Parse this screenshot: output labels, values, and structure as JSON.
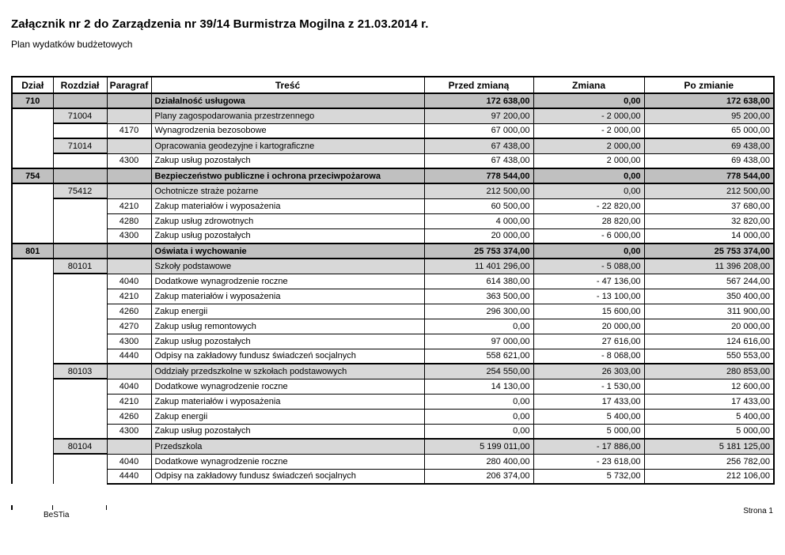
{
  "document": {
    "title": "Załącznik nr 2 do Zarządzenia nr 39/14 Burmistrza Mogilna z 21.03.2014 r.",
    "subtitle": "Plan wydatków budżetowych",
    "footer_left": "BeSTia",
    "footer_right": "Strona 1"
  },
  "colors": {
    "dzial_row_bg": "#c0c0c0",
    "rozdzial_row_bg": "#d8d8d8",
    "paragraf_row_bg": "#ffffff",
    "border": "#000000"
  },
  "table": {
    "columns": [
      "Dział",
      "Rozdział",
      "Paragraf",
      "Treść",
      "Przed zmianą",
      "Zmiana",
      "Po zmianie"
    ],
    "rows": [
      {
        "type": "dzial",
        "dzial": "710",
        "tresc": "Działalność usługowa",
        "przed": "172 638,00",
        "zmiana": "0,00",
        "po": "172 638,00"
      },
      {
        "type": "rozdzial",
        "rozdzial": "71004",
        "tresc": "Plany zagospodarowania przestrzennego",
        "przed": "97 200,00",
        "zmiana": "- 2 000,00",
        "po": "95 200,00"
      },
      {
        "type": "paragraf",
        "paragraf": "4170",
        "tresc": "Wynagrodzenia bezosobowe",
        "przed": "67 000,00",
        "zmiana": "- 2 000,00",
        "po": "65 000,00"
      },
      {
        "type": "rozdzial",
        "rozdzial": "71014",
        "tresc": "Opracowania geodezyjne i kartograficzne",
        "przed": "67 438,00",
        "zmiana": "2 000,00",
        "po": "69 438,00"
      },
      {
        "type": "paragraf",
        "paragraf": "4300",
        "tresc": "Zakup usług pozostałych",
        "przed": "67 438,00",
        "zmiana": "2 000,00",
        "po": "69 438,00"
      },
      {
        "type": "dzial",
        "dzial": "754",
        "tresc": "Bezpieczeństwo publiczne i ochrona przeciwpożarowa",
        "przed": "778 544,00",
        "zmiana": "0,00",
        "po": "778 544,00"
      },
      {
        "type": "rozdzial",
        "rozdzial": "75412",
        "tresc": "Ochotnicze straże pożarne",
        "przed": "212 500,00",
        "zmiana": "0,00",
        "po": "212 500,00"
      },
      {
        "type": "paragraf",
        "paragraf": "4210",
        "tresc": "Zakup materiałów i wyposażenia",
        "przed": "60 500,00",
        "zmiana": "- 22 820,00",
        "po": "37 680,00"
      },
      {
        "type": "paragraf",
        "paragraf": "4280",
        "tresc": "Zakup usług zdrowotnych",
        "przed": "4 000,00",
        "zmiana": "28 820,00",
        "po": "32 820,00"
      },
      {
        "type": "paragraf",
        "paragraf": "4300",
        "tresc": "Zakup usług pozostałych",
        "przed": "20 000,00",
        "zmiana": "- 6 000,00",
        "po": "14 000,00"
      },
      {
        "type": "dzial",
        "dzial": "801",
        "tresc": "Oświata i wychowanie",
        "przed": "25 753 374,00",
        "zmiana": "0,00",
        "po": "25 753 374,00"
      },
      {
        "type": "rozdzial",
        "rozdzial": "80101",
        "tresc": "Szkoły podstawowe",
        "przed": "11 401 296,00",
        "zmiana": "- 5 088,00",
        "po": "11 396 208,00"
      },
      {
        "type": "paragraf",
        "paragraf": "4040",
        "tresc": "Dodatkowe wynagrodzenie roczne",
        "przed": "614 380,00",
        "zmiana": "- 47 136,00",
        "po": "567 244,00"
      },
      {
        "type": "paragraf",
        "paragraf": "4210",
        "tresc": "Zakup materiałów i wyposażenia",
        "przed": "363 500,00",
        "zmiana": "- 13 100,00",
        "po": "350 400,00"
      },
      {
        "type": "paragraf",
        "paragraf": "4260",
        "tresc": "Zakup energii",
        "przed": "296 300,00",
        "zmiana": "15 600,00",
        "po": "311 900,00"
      },
      {
        "type": "paragraf",
        "paragraf": "4270",
        "tresc": "Zakup usług remontowych",
        "przed": "0,00",
        "zmiana": "20 000,00",
        "po": "20 000,00"
      },
      {
        "type": "paragraf",
        "paragraf": "4300",
        "tresc": "Zakup usług pozostałych",
        "przed": "97 000,00",
        "zmiana": "27 616,00",
        "po": "124 616,00"
      },
      {
        "type": "paragraf",
        "paragraf": "4440",
        "tresc": "Odpisy na zakładowy fundusz świadczeń socjalnych",
        "przed": "558 621,00",
        "zmiana": "- 8 068,00",
        "po": "550 553,00"
      },
      {
        "type": "rozdzial",
        "rozdzial": "80103",
        "tresc": "Oddziały przedszkolne w szkołach podstawowych",
        "przed": "254 550,00",
        "zmiana": "26 303,00",
        "po": "280 853,00"
      },
      {
        "type": "paragraf",
        "paragraf": "4040",
        "tresc": "Dodatkowe wynagrodzenie roczne",
        "przed": "14 130,00",
        "zmiana": "- 1 530,00",
        "po": "12 600,00"
      },
      {
        "type": "paragraf",
        "paragraf": "4210",
        "tresc": "Zakup materiałów i wyposażenia",
        "przed": "0,00",
        "zmiana": "17 433,00",
        "po": "17 433,00"
      },
      {
        "type": "paragraf",
        "paragraf": "4260",
        "tresc": "Zakup energii",
        "przed": "0,00",
        "zmiana": "5 400,00",
        "po": "5 400,00"
      },
      {
        "type": "paragraf",
        "paragraf": "4300",
        "tresc": "Zakup usług pozostałych",
        "przed": "0,00",
        "zmiana": "5 000,00",
        "po": "5 000,00"
      },
      {
        "type": "rozdzial",
        "rozdzial": "80104",
        "tresc": "Przedszkola",
        "przed": "5 199 011,00",
        "zmiana": "- 17 886,00",
        "po": "5 181 125,00"
      },
      {
        "type": "paragraf",
        "paragraf": "4040",
        "tresc": "Dodatkowe wynagrodzenie roczne",
        "przed": "280 400,00",
        "zmiana": "- 23 618,00",
        "po": "256 782,00"
      },
      {
        "type": "paragraf",
        "paragraf": "4440",
        "tresc": "Odpisy na zakładowy fundusz świadczeń socjalnych",
        "przed": "206 374,00",
        "zmiana": "5 732,00",
        "po": "212 106,00"
      }
    ]
  }
}
